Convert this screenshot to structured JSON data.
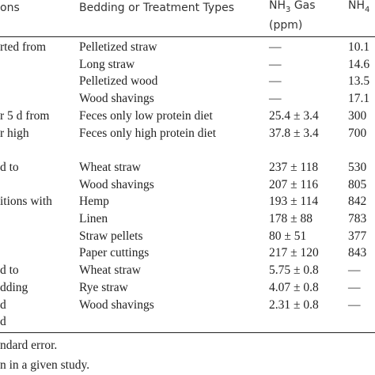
{
  "table": {
    "header": {
      "conditions": "ons",
      "bedding": "Bedding or Treatment Types",
      "nh3": {
        "base": "NH",
        "sub": "3",
        "rest": " Gas",
        "line2": "(ppm)"
      },
      "nh4": {
        "base": "NH",
        "sub": "4"
      }
    },
    "rows": [
      {
        "condition": "rted from",
        "bedding": "Pelletized straw",
        "nh3": "—",
        "nh4": "10.1"
      },
      {
        "bedding": "Long straw",
        "nh3": "—",
        "nh4": "14.6"
      },
      {
        "bedding": "Pelletized wood",
        "nh3": "—",
        "nh4": "13.5"
      },
      {
        "bedding": "Wood shavings",
        "nh3": "—",
        "nh4": "17.1"
      },
      {
        "condition": "r 5 d from",
        "bedding": "Feces only low protein diet",
        "nh3": "25.4 ± 3.4",
        "nh4": "300"
      },
      {
        "condition": "r high",
        "bedding": "Feces only high protein diet",
        "nh3": "37.8 ± 3.4",
        "nh4": "700"
      },
      {
        "condition": "d to",
        "bedding": "Wheat straw",
        "nh3": "237 ± 118",
        "nh4": "530"
      },
      {
        "bedding": "Wood shavings",
        "nh3": "207 ± 116",
        "nh4": "805"
      },
      {
        "condition": "itions with",
        "bedding": "Hemp",
        "nh3": "193 ± 114",
        "nh4": "842"
      },
      {
        "bedding": "Linen",
        "nh3": "178 ± 88",
        "nh4": "783"
      },
      {
        "bedding": "Straw pellets",
        "nh3": "80 ± 51",
        "nh4": "377"
      },
      {
        "bedding": "Paper cuttings",
        "nh3": "217 ± 120",
        "nh4": "843"
      },
      {
        "condition": "d to",
        "bedding": "Wheat straw",
        "nh3": "5.75 ± 0.8",
        "nh4": "—"
      },
      {
        "condition": "dding",
        "bedding": "Rye straw",
        "nh3": "4.07 ± 0.8",
        "nh4": "—"
      },
      {
        "condition": "d",
        "bedding": "Wood shavings",
        "nh3": "2.31 ± 0.8",
        "nh4": "—"
      },
      {
        "condition": "d"
      }
    ],
    "footnotes": [
      "ndard error.",
      "n in a given study."
    ]
  }
}
